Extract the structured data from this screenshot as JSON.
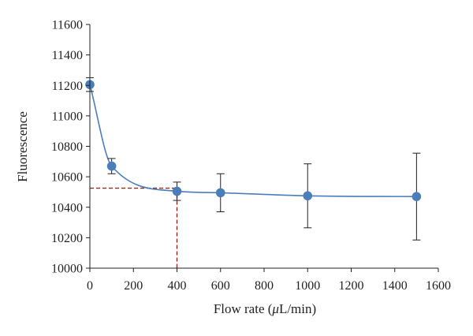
{
  "chart_data": {
    "type": "scatter",
    "xlabel_parts": [
      "Flow rate (",
      "μ",
      "L/min)"
    ],
    "ylabel": "Fluorescence",
    "xlim": [
      0,
      1600
    ],
    "ylim": [
      10000,
      11600
    ],
    "x_ticks": [
      0,
      200,
      400,
      600,
      800,
      1000,
      1200,
      1400,
      1600
    ],
    "y_ticks": [
      10000,
      10200,
      10400,
      10600,
      10800,
      11000,
      11200,
      11400,
      11600
    ],
    "series": [
      {
        "x": [
          0,
          100,
          400,
          600,
          1000,
          1500
        ],
        "y": [
          11205,
          10670,
          10505,
          10495,
          10475,
          10470
        ],
        "error": [
          45,
          50,
          60,
          125,
          210,
          285
        ],
        "color": "#4a7ebb"
      }
    ],
    "smooth_curve": true,
    "grid": false,
    "reference_lines": {
      "color": "#8b2a1a",
      "style": "dashed",
      "x": 400,
      "y": 10525
    }
  }
}
